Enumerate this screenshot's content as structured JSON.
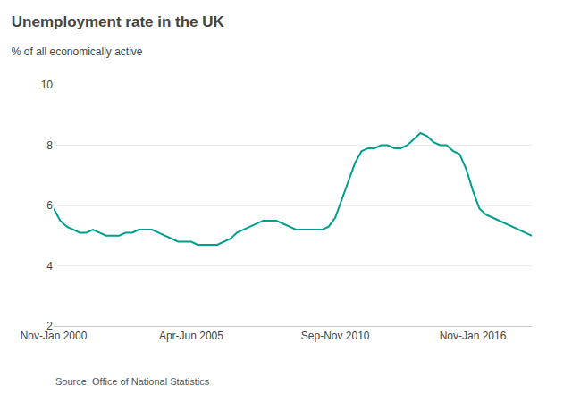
{
  "chart_data": {
    "type": "line",
    "title": "Unemployment rate in the UK",
    "subtitle": "% of all economically active",
    "source": "Source: Office of National Statistics",
    "color": "#009e8e",
    "categories": [
      "Nov-Jan 2000",
      null,
      null,
      null,
      null,
      null,
      null,
      null,
      null,
      null,
      null,
      null,
      null,
      null,
      null,
      null,
      null,
      null,
      null,
      null,
      null,
      "Apr-Jun 2005",
      null,
      null,
      null,
      null,
      null,
      null,
      null,
      null,
      null,
      null,
      null,
      null,
      null,
      null,
      null,
      null,
      null,
      null,
      null,
      null,
      null,
      "Sep-Nov 2010",
      null,
      null,
      null,
      null,
      null,
      null,
      null,
      null,
      null,
      null,
      null,
      null,
      null,
      null,
      null,
      null,
      null,
      null,
      null,
      null,
      "Nov-Jan 2016",
      null,
      null,
      null,
      null,
      null,
      null,
      null,
      null,
      null
    ],
    "values": [
      5.9,
      5.5,
      5.3,
      5.2,
      5.1,
      5.1,
      5.2,
      5.1,
      5.0,
      5.0,
      5.0,
      5.1,
      5.1,
      5.2,
      5.2,
      5.2,
      5.1,
      5.0,
      4.9,
      4.8,
      4.8,
      4.8,
      4.7,
      4.7,
      4.7,
      4.7,
      4.8,
      4.9,
      5.1,
      5.2,
      5.3,
      5.4,
      5.5,
      5.5,
      5.5,
      5.4,
      5.3,
      5.2,
      5.2,
      5.2,
      5.2,
      5.2,
      5.3,
      5.6,
      6.2,
      6.8,
      7.4,
      7.8,
      7.9,
      7.9,
      8.0,
      8.0,
      7.9,
      7.9,
      8.0,
      8.2,
      8.4,
      8.3,
      8.1,
      8.0,
      8.0,
      7.8,
      7.7,
      7.2,
      6.5,
      5.9,
      5.7,
      5.6,
      5.5,
      5.4,
      5.3,
      5.2,
      5.1,
      5.0
    ],
    "ylim": [
      2,
      10
    ],
    "yticks": [
      2,
      4,
      6,
      8,
      10
    ],
    "grid": true
  }
}
